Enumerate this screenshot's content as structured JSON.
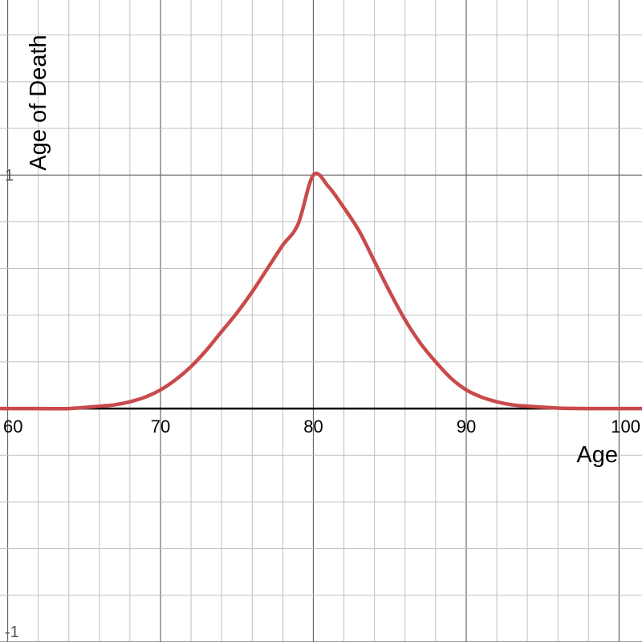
{
  "chart_data": {
    "type": "line",
    "title": "",
    "xlabel": "Age",
    "ylabel": "Age of Death",
    "xlim": [
      59.5,
      101.5
    ],
    "ylim": [
      -1.0,
      1.75
    ],
    "x_ticks": [
      60,
      70,
      80,
      90,
      100
    ],
    "x_tick_labels": [
      "60",
      "70",
      "80",
      "90",
      "100"
    ],
    "y_tick_labels": [
      {
        "value": 1,
        "label": "1"
      },
      {
        "value": -1,
        "label": "-1"
      }
    ],
    "grid": true,
    "minor_grid_step_x": 2,
    "minor_grid_step_y": 0.2,
    "series": [
      {
        "color": "#c94a4a",
        "x": [
          59.5,
          62,
          64,
          66,
          67,
          68,
          69,
          70,
          71,
          72,
          73,
          74,
          75,
          76,
          77,
          78,
          79,
          80,
          81,
          82,
          83,
          84,
          85,
          86,
          87,
          88,
          89,
          90,
          91,
          92,
          93,
          94,
          96,
          98,
          101.5
        ],
        "y": [
          0.0,
          0.0,
          0.0,
          0.01,
          0.016,
          0.029,
          0.049,
          0.08,
          0.124,
          0.18,
          0.25,
          0.33,
          0.41,
          0.5,
          0.6,
          0.7,
          0.79,
          1.0,
          0.95,
          0.86,
          0.76,
          0.63,
          0.5,
          0.38,
          0.28,
          0.2,
          0.13,
          0.08,
          0.049,
          0.029,
          0.016,
          0.01,
          0.002,
          0.0,
          0.0
        ]
      }
    ],
    "colors": {
      "grid_major": "#666666",
      "grid_minor": "#bfbfbf",
      "axis": "#000000"
    }
  }
}
